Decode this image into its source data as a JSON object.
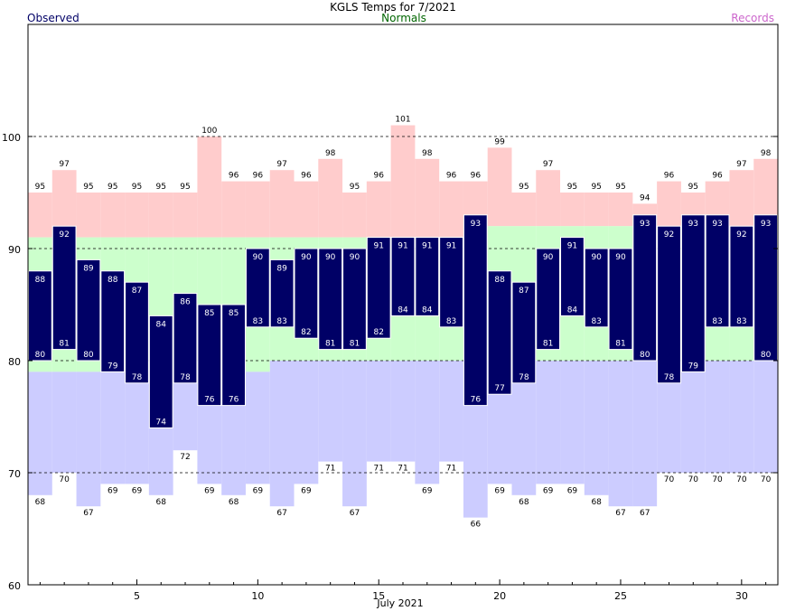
{
  "chart_data": {
    "type": "bar",
    "title": "KGLS Temps for 7/2021",
    "xlabel": "July 2021",
    "ylabel": "",
    "ylim": [
      60,
      110
    ],
    "xlim": [
      0.5,
      31.5
    ],
    "yticks": [
      60,
      70,
      80,
      90,
      100
    ],
    "xticks": [
      5,
      10,
      15,
      20,
      25,
      30
    ],
    "grid_y": [
      70,
      80,
      90,
      100
    ],
    "legend": {
      "observed": "Observed",
      "normals": "Normals",
      "records": "Records"
    },
    "colors": {
      "observed_bar": "#000066",
      "observed_label": "#000066",
      "normals_band": "#ccffcc",
      "normals_label": "#006600",
      "record_high_band": "#ffcccc",
      "record_low_band": "#ccccff",
      "records_label": "#cc66cc",
      "bar_text": "#ffffff",
      "text": "#000000",
      "grid": "#000000"
    },
    "days": [
      1,
      2,
      3,
      4,
      5,
      6,
      7,
      8,
      9,
      10,
      11,
      12,
      13,
      14,
      15,
      16,
      17,
      18,
      19,
      20,
      21,
      22,
      23,
      24,
      25,
      26,
      27,
      28,
      29,
      30,
      31
    ],
    "observed_high": [
      88,
      92,
      89,
      88,
      87,
      84,
      86,
      85,
      85,
      90,
      89,
      90,
      90,
      90,
      91,
      91,
      91,
      91,
      93,
      88,
      87,
      90,
      91,
      90,
      90,
      93,
      92,
      93,
      93,
      92,
      93
    ],
    "observed_low": [
      80,
      81,
      80,
      79,
      78,
      74,
      78,
      76,
      76,
      83,
      83,
      82,
      81,
      81,
      82,
      84,
      84,
      83,
      76,
      77,
      78,
      81,
      84,
      83,
      81,
      80,
      78,
      79,
      83,
      83,
      80
    ],
    "normal_high": [
      91,
      91,
      91,
      91,
      91,
      91,
      91,
      91,
      91,
      91,
      91,
      91,
      91,
      91,
      91,
      91,
      91,
      91,
      91,
      92,
      92,
      92,
      92,
      92,
      92,
      92,
      92,
      92,
      92,
      92,
      92
    ],
    "normal_low": [
      79,
      79,
      79,
      79,
      79,
      79,
      79,
      79,
      79,
      79,
      80,
      80,
      80,
      80,
      80,
      80,
      80,
      80,
      80,
      80,
      80,
      80,
      80,
      80,
      80,
      80,
      80,
      80,
      80,
      80,
      80
    ],
    "record_high": [
      95,
      97,
      95,
      95,
      95,
      95,
      95,
      100,
      96,
      96,
      97,
      96,
      98,
      95,
      96,
      101,
      98,
      96,
      96,
      99,
      95,
      97,
      95,
      95,
      95,
      94,
      96,
      95,
      96,
      97,
      98
    ],
    "record_low": [
      68,
      70,
      67,
      69,
      69,
      68,
      72,
      69,
      68,
      69,
      67,
      69,
      71,
      67,
      71,
      71,
      69,
      71,
      66,
      69,
      68,
      69,
      69,
      68,
      67,
      67,
      70,
      70,
      70,
      70,
      70
    ]
  }
}
